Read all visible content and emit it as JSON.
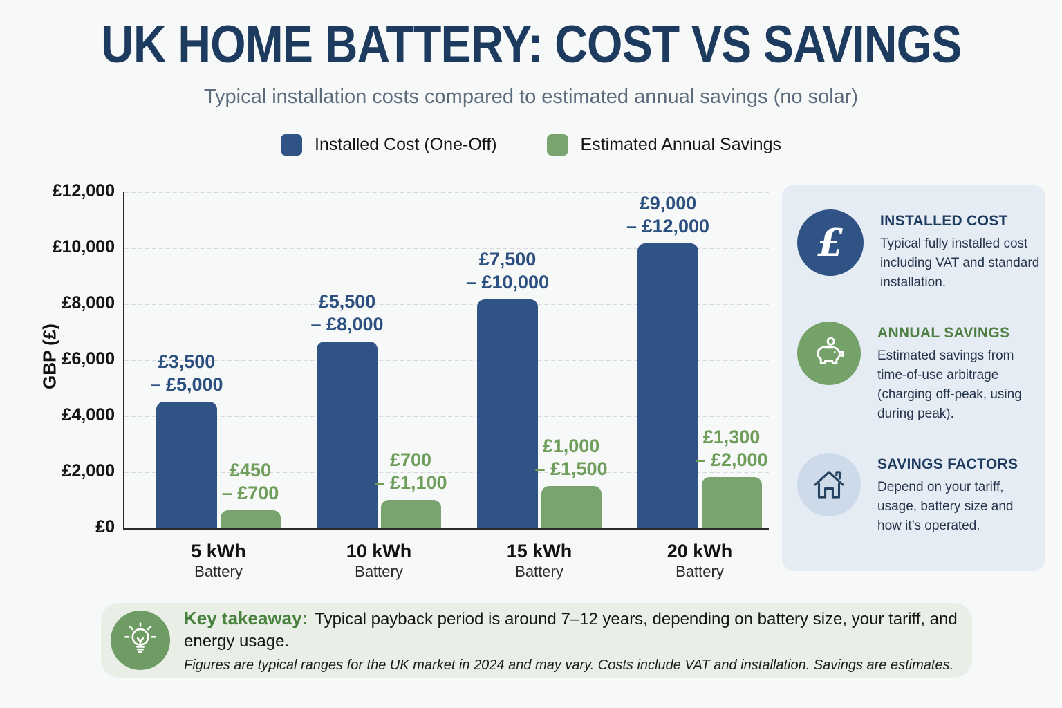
{
  "header": {
    "title": "UK HOME BATTERY: COST VS SAVINGS",
    "subtitle": "Typical installation costs compared to estimated annual savings (no solar)"
  },
  "legend": {
    "items": [
      {
        "label": "Installed Cost (One-Off)",
        "color": "#2e5384"
      },
      {
        "label": "Estimated Annual Savings",
        "color": "#7aa46f"
      }
    ]
  },
  "chart_data": {
    "type": "bar",
    "title": "UK Home Battery: Cost vs Savings",
    "subtitle": "Typical installation costs compared to estimated annual savings (no solar)",
    "xlabel": "",
    "ylabel": "GBP (£)",
    "ylim": [
      0,
      12000
    ],
    "grid": "horizontal dashed",
    "legend_position": "top",
    "yticks": [
      {
        "label": "£12,000",
        "value": 12000
      },
      {
        "label": "£10,000",
        "value": 10000
      },
      {
        "label": "£8,000",
        "value": 8000
      },
      {
        "label": "£6,000",
        "value": 6000
      },
      {
        "label": "£4,000",
        "value": 4000
      },
      {
        "label": "£2,000",
        "value": 2000
      },
      {
        "label": "£0",
        "value": 0
      }
    ],
    "categories": [
      "5 kWh Battery",
      "10 kWh Battery",
      "15 kWh Battery",
      "20 kWh Battery"
    ],
    "category_lines": [
      [
        "5 kWh",
        "Battery"
      ],
      [
        "10 kWh",
        "Battery"
      ],
      [
        "15 kWh",
        "Battery"
      ],
      [
        "20 kWh",
        "Battery"
      ]
    ],
    "series": [
      {
        "name": "Installed Cost (One-Off)",
        "color": "#2e5384",
        "label_color": "#2b4f7e",
        "ranges": [
          {
            "min": 3500,
            "max": 5000
          },
          {
            "min": 5500,
            "max": 8000
          },
          {
            "min": 7500,
            "max": 10000
          },
          {
            "min": 9000,
            "max": 12000
          }
        ],
        "range_labels": [
          [
            "£3,500",
            "– £5,000"
          ],
          [
            "£5,500",
            "– £8,000"
          ],
          [
            "£7,500",
            "– £10,000"
          ],
          [
            "£9,000",
            "– £12,000"
          ]
        ],
        "bar_heights_gbp": [
          4500,
          6650,
          8150,
          10150
        ]
      },
      {
        "name": "Estimated Annual Savings",
        "color": "#7aa46f",
        "label_color": "#6f9e5b",
        "ranges": [
          {
            "min": 450,
            "max": 700
          },
          {
            "min": 700,
            "max": 1100
          },
          {
            "min": 1000,
            "max": 1500
          },
          {
            "min": 1300,
            "max": 2000
          }
        ],
        "range_labels": [
          [
            "£450",
            "– £700"
          ],
          [
            "£700",
            "– £1,100"
          ],
          [
            "£1,000",
            "– £1,500"
          ],
          [
            "£1,300",
            "– £2,000"
          ]
        ],
        "bar_heights_gbp": [
          620,
          990,
          1480,
          1800
        ]
      }
    ]
  },
  "sidebar": {
    "bg": "#e6ecf4",
    "items": [
      {
        "icon": "pound-icon",
        "icon_bg": "#2e5384",
        "title": "INSTALLED COST",
        "title_color": "#1d3a5f",
        "body": "Typical fully installed cost including VAT and standard installation."
      },
      {
        "icon": "piggy-bank-icon",
        "icon_bg": "#74a268",
        "title": "ANNUAL SAVINGS",
        "title_color": "#4f8043",
        "body": "Estimated savings from time-of-use arbitrage (charging off-peak, using during peak)."
      },
      {
        "icon": "house-icon",
        "icon_bg": "#ccdaea",
        "title": "SAVINGS FACTORS",
        "title_color": "#1d3a5f",
        "body": "Depend on your tariff, usage, battery size and how it’s operated."
      }
    ]
  },
  "takeaway": {
    "icon": "lightbulb-icon",
    "icon_bg": "#6f9c64",
    "label": "Key takeaway:",
    "text": "Typical payback period is around 7–12 years, depending on battery size, your tariff, and energy usage.",
    "note": "Figures are typical ranges for the UK market in 2024 and may vary. Costs include VAT and installation. Savings are estimates."
  }
}
